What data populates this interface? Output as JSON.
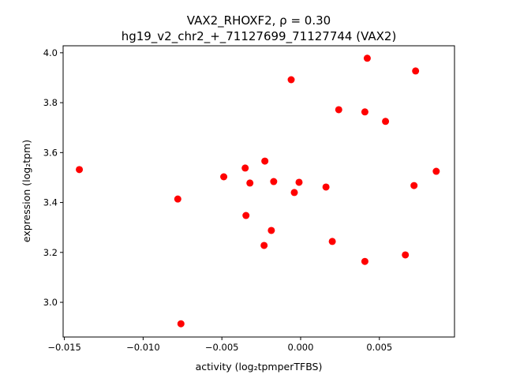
{
  "chart_data": {
    "type": "scatter",
    "title_line1": "VAX2_RHOXF2, ρ = 0.30",
    "title_line2": "hg19_v2_chr2_+_71127699_71127744 (VAX2)",
    "xlabel": "activity (log₂tpmperTFBS)",
    "ylabel": "expression (log₂tpm)",
    "xlim": [
      -0.01508,
      0.00977
    ],
    "ylim": [
      2.861,
      4.028
    ],
    "xticks": [
      -0.015,
      -0.01,
      -0.005,
      0.0,
      0.005
    ],
    "xtick_labels": [
      "−0.015",
      "−0.010",
      "−0.005",
      "0.000",
      "0.005"
    ],
    "yticks": [
      3.0,
      3.2,
      3.4,
      3.6,
      3.8,
      4.0
    ],
    "ytick_labels": [
      "3.0",
      "3.2",
      "3.4",
      "3.6",
      "3.8",
      "4.0"
    ],
    "grid": false,
    "marker_color": "#ff0000",
    "points": [
      [
        -0.01405,
        3.532
      ],
      [
        -0.0078,
        3.414
      ],
      [
        -0.0076,
        2.914
      ],
      [
        -0.00488,
        3.503
      ],
      [
        -0.00352,
        3.538
      ],
      [
        -0.00347,
        3.348
      ],
      [
        -0.00322,
        3.478
      ],
      [
        -0.00227,
        3.566
      ],
      [
        -0.00232,
        3.228
      ],
      [
        -0.00186,
        3.288
      ],
      [
        -0.00171,
        3.484
      ],
      [
        -0.0006,
        3.892
      ],
      [
        -0.0004,
        3.44
      ],
      [
        -0.0001,
        3.481
      ],
      [
        0.00161,
        3.462
      ],
      [
        0.00201,
        3.244
      ],
      [
        0.00242,
        3.772
      ],
      [
        0.00408,
        3.763
      ],
      [
        0.00408,
        3.164
      ],
      [
        0.00423,
        3.978
      ],
      [
        0.00539,
        3.725
      ],
      [
        0.00665,
        3.19
      ],
      [
        0.0072,
        3.468
      ],
      [
        0.0073,
        3.927
      ],
      [
        0.00861,
        3.525
      ]
    ]
  }
}
